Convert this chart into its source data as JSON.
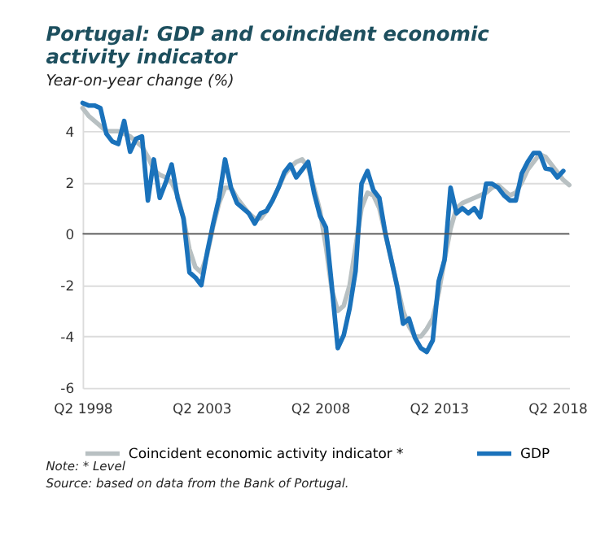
{
  "chart_data": {
    "type": "line",
    "title": [
      "Portugal: GDP and coincident economic",
      "activity indicator"
    ],
    "subtitle": "Year-on-year change (%)",
    "categories": [
      "Q2 1998",
      null,
      null,
      null,
      null,
      null,
      null,
      null,
      null,
      null,
      null,
      null,
      null,
      null,
      null,
      null,
      null,
      null,
      null,
      null,
      "Q2 2003",
      null,
      null,
      null,
      null,
      null,
      null,
      null,
      null,
      null,
      null,
      null,
      null,
      null,
      null,
      null,
      null,
      null,
      null,
      null,
      "Q2 2008",
      null,
      null,
      null,
      null,
      null,
      null,
      null,
      null,
      null,
      null,
      null,
      null,
      null,
      null,
      null,
      null,
      null,
      null,
      null,
      "Q2 2013",
      null,
      null,
      null,
      null,
      null,
      null,
      null,
      null,
      null,
      null,
      null,
      null,
      null,
      null,
      null,
      null,
      null,
      null,
      null,
      "Q2 2018",
      null,
      null
    ],
    "series": [
      {
        "name": "Coincident economic activity indicator *",
        "color": "#b8c0c2",
        "values": [
          4.9,
          4.6,
          4.4,
          4.2,
          4.0,
          4.0,
          4.0,
          3.9,
          3.8,
          3.6,
          3.4,
          3.0,
          2.5,
          2.3,
          2.2,
          2.0,
          1.5,
          0.6,
          -0.6,
          -1.3,
          -1.5,
          -0.8,
          0.3,
          1.2,
          1.8,
          1.8,
          1.4,
          1.1,
          0.8,
          0.6,
          0.6,
          0.9,
          1.3,
          1.8,
          2.3,
          2.6,
          2.8,
          2.9,
          2.6,
          1.8,
          0.9,
          -0.5,
          -2.2,
          -3.0,
          -2.8,
          -2.0,
          -0.5,
          1.0,
          1.6,
          1.5,
          1.0,
          0.0,
          -1.0,
          -2.0,
          -3.0,
          -3.6,
          -4.0,
          -4.0,
          -3.7,
          -3.3,
          -2.3,
          -1.0,
          0.2,
          1.0,
          1.2,
          1.3,
          1.4,
          1.5,
          1.6,
          1.8,
          1.9,
          1.7,
          1.5,
          1.6,
          2.0,
          2.5,
          2.8,
          3.1,
          3.0,
          2.7,
          2.4,
          2.1,
          1.9
        ]
      },
      {
        "name": "GDP",
        "color": "#1a72bb",
        "values": [
          5.1,
          5.0,
          5.0,
          4.9,
          3.9,
          3.6,
          3.5,
          4.4,
          3.2,
          3.7,
          3.8,
          1.3,
          2.9,
          1.4,
          2.0,
          2.7,
          1.4,
          0.6,
          -1.5,
          -1.7,
          -2.0,
          -0.7,
          0.4,
          1.4,
          2.9,
          1.8,
          1.2,
          1.0,
          0.8,
          0.4,
          0.8,
          0.9,
          1.3,
          1.8,
          2.4,
          2.7,
          2.2,
          2.5,
          2.8,
          1.6,
          0.7,
          0.25,
          -2.05,
          -4.45,
          -3.95,
          -2.9,
          -1.45,
          1.95,
          2.45,
          1.7,
          1.4,
          0.05,
          -1.0,
          -2.05,
          -3.5,
          -3.3,
          -4.05,
          -4.45,
          -4.6,
          -4.15,
          -1.85,
          -1.0,
          1.8,
          0.8,
          1.0,
          0.8,
          1.0,
          0.65,
          1.95,
          1.95,
          1.8,
          1.5,
          1.3,
          1.3,
          2.35,
          2.8,
          3.15,
          3.15,
          2.55,
          2.5,
          2.2,
          2.45,
          null
        ]
      }
    ],
    "ylim": [
      -6,
      5.2
    ],
    "yticks": [
      -6,
      -4,
      -2,
      0,
      2,
      4
    ],
    "grid": "y",
    "legend": "bottom",
    "marker": "none",
    "line_style": "solid",
    "ref_lines": [
      {
        "axis": "y",
        "value": 0,
        "color": "#555555"
      }
    ],
    "annotations": [
      "Note: * Level",
      "Source: based on data from the Bank of Portugal."
    ]
  }
}
